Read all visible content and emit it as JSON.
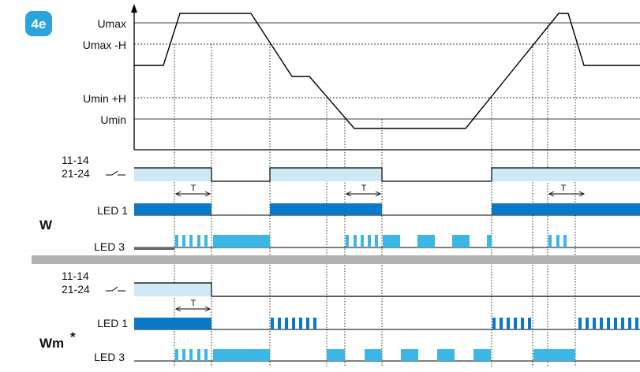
{
  "badge": "4e",
  "voltage": {
    "levels": [
      "Umax",
      "Umax -H",
      "Umin +H",
      "Umin"
    ]
  },
  "contacts": {
    "label_top": "11-14",
    "label_bottom": "21-24"
  },
  "w_mode": {
    "label": "W",
    "led1": "LED 1",
    "led3": "LED 3"
  },
  "wm_mode": {
    "label": "Wm",
    "asterisk": "*",
    "led1": "LED 1",
    "led3": "LED 3"
  },
  "delay_marker": "T",
  "colors": {
    "badge": "#2aa3df",
    "relay_fill": "#cfe9f7",
    "led1": "#0a78c8",
    "led3": "#3ab7e6",
    "separator": "#b3b3b3"
  }
}
